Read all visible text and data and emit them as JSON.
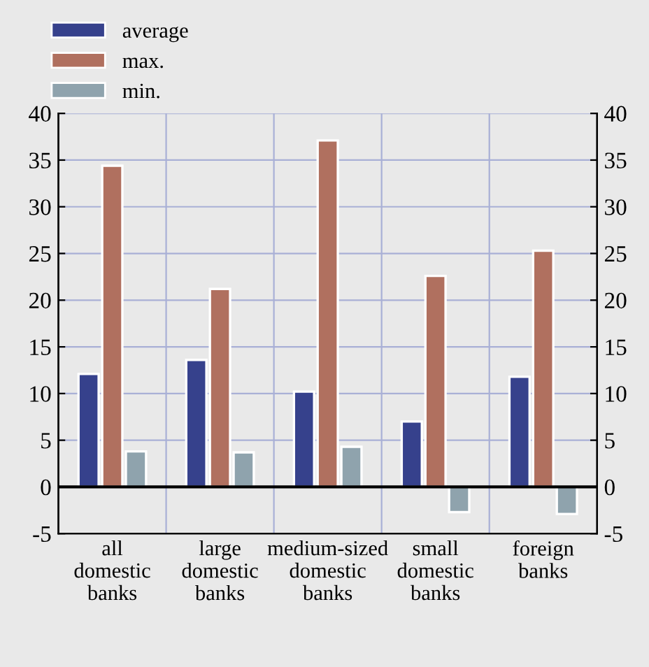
{
  "chart_data": {
    "type": "bar",
    "categories": [
      "all\ndomestic\nbanks",
      "large\ndomestic\nbanks",
      "medium-sized\ndomestic\nbanks",
      "small\ndomestic\nbanks",
      "foreign\nbanks"
    ],
    "series": [
      {
        "name": "average",
        "color": "#36418c",
        "values": [
          12.1,
          13.6,
          10.2,
          7.0,
          11.8
        ]
      },
      {
        "name": "max.",
        "color": "#b0705f",
        "values": [
          34.4,
          21.2,
          37.1,
          22.6,
          25.3
        ]
      },
      {
        "name": "min.",
        "color": "#8fa3ad",
        "values": [
          3.8,
          3.7,
          4.3,
          -2.7,
          -2.9
        ]
      }
    ],
    "ylim": [
      -5,
      40
    ],
    "yticks": [
      -5,
      0,
      5,
      10,
      15,
      20,
      25,
      30,
      35,
      40
    ],
    "y2lim": [
      -5,
      40
    ],
    "y2ticks": [
      -5,
      0,
      5,
      10,
      15,
      20,
      25,
      30,
      35,
      40
    ],
    "grid": true,
    "legend": "top left"
  }
}
